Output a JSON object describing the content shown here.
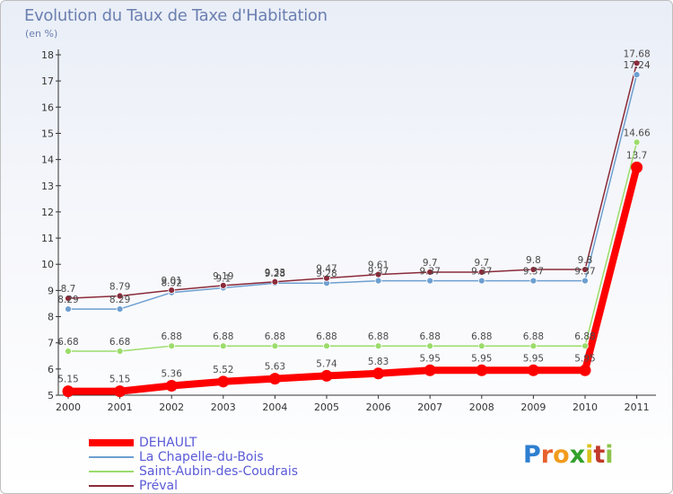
{
  "header": {
    "title": "Evolution du Taux de Taxe d'Habitation",
    "subtitle": "(en %)"
  },
  "logo": {
    "text": "Proxiti",
    "colors": [
      "#2e7fd0",
      "#e8612c",
      "#f29b1d",
      "#33a02c",
      "#d9c21a",
      "#c0392b",
      "#8bc34a"
    ]
  },
  "chart_data": {
    "type": "line",
    "x": [
      "2000",
      "2001",
      "2002",
      "2003",
      "2004",
      "2005",
      "2006",
      "2007",
      "2008",
      "2009",
      "2010",
      "2011"
    ],
    "ylim": [
      5,
      18
    ],
    "yticks": [
      5,
      6,
      7,
      8,
      9,
      10,
      11,
      12,
      13,
      14,
      15,
      16,
      17,
      18
    ],
    "grid": false,
    "legend_position": "bottom-left",
    "series": [
      {
        "name": "DEHAULT",
        "color": "#ff0000",
        "values": [
          5.15,
          5.15,
          5.36,
          5.52,
          5.63,
          5.74,
          5.83,
          5.95,
          5.95,
          5.95,
          5.95,
          13.7
        ],
        "labels": [
          "5.15",
          "5.15",
          "5.36",
          "5.52",
          "5.63",
          "5.74",
          "5.83",
          "5.95",
          "5.95",
          "5.95",
          "5.95",
          "13.7"
        ]
      },
      {
        "name": "La Chapelle-du-Bois",
        "color": "#6d9fd0",
        "values": [
          8.29,
          8.29,
          8.92,
          9.1,
          9.28,
          9.28,
          9.37,
          9.37,
          9.37,
          9.37,
          9.37,
          17.24
        ],
        "labels": [
          "8.29",
          "8.29",
          "8.92",
          "9.1",
          "9.28",
          "9.28",
          "9.37",
          "9.37",
          "9.37",
          "9.37",
          "9.37",
          "17.24"
        ]
      },
      {
        "name": "Saint-Aubin-des-Coudrais",
        "color": "#9bdc6b",
        "values": [
          6.68,
          6.68,
          6.88,
          6.88,
          6.88,
          6.88,
          6.88,
          6.88,
          6.88,
          6.88,
          6.88,
          14.66
        ],
        "labels": [
          "6.68",
          "6.68",
          "6.88",
          "6.88",
          "6.88",
          "6.88",
          "6.88",
          "6.88",
          "6.88",
          "6.88",
          "6.88",
          "14.66"
        ]
      },
      {
        "name": "Préval",
        "color": "#8a2a3a",
        "values": [
          8.7,
          8.79,
          9.01,
          9.19,
          9.33,
          9.47,
          9.61,
          9.7,
          9.7,
          9.8,
          9.8,
          17.68
        ],
        "labels": [
          "8.7",
          "8.79",
          "9.01",
          "9.19",
          "9.33",
          "9.47",
          "9.61",
          "9.7",
          "9.7",
          "9.8",
          "9.8",
          "17.68"
        ]
      }
    ]
  }
}
